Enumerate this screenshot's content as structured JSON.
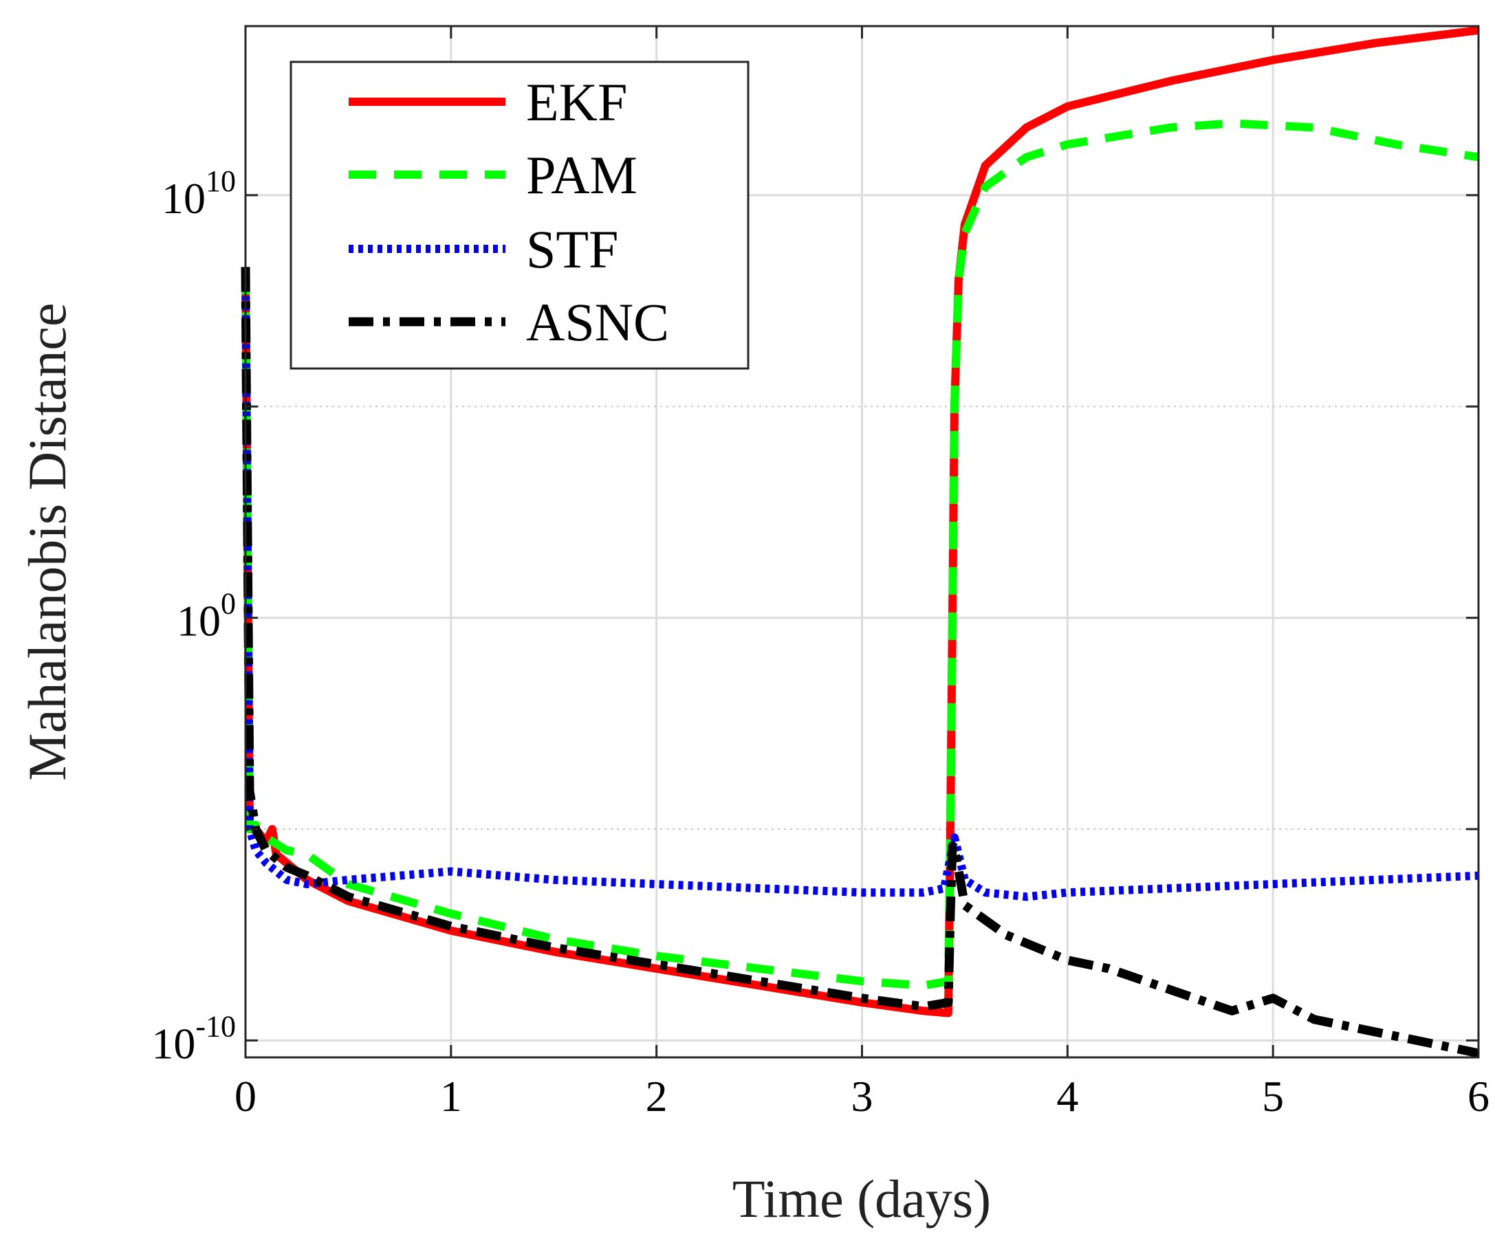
{
  "chart_data": {
    "type": "line",
    "title": "",
    "xlabel": "Time (days)",
    "ylabel": "Mahalanobis Distance",
    "xlim": [
      0,
      6
    ],
    "ylim_log10": [
      -10.4,
      14
    ],
    "y_scale": "log",
    "grid": true,
    "legend_position": "top-left",
    "x_ticks": [
      0,
      1,
      2,
      3,
      4,
      5,
      6
    ],
    "x_tick_labels": [
      "0",
      "1",
      "2",
      "3",
      "4",
      "5",
      "6"
    ],
    "y_major_ticks_log10": [
      -10,
      0,
      10
    ],
    "y_tick_labels": [
      {
        "base": "10",
        "exp": "-10"
      },
      {
        "base": "10",
        "exp": "0"
      },
      {
        "base": "10",
        "exp": "10"
      }
    ],
    "y_minor_grid_log10": [
      -5,
      5
    ],
    "series": [
      {
        "name": "EKF",
        "color": "#ff0000",
        "style": "solid",
        "x": [
          0,
          0.005,
          0.02,
          0.05,
          0.1,
          0.13,
          0.15,
          0.2,
          0.3,
          0.5,
          1.0,
          1.5,
          2.0,
          2.5,
          3.0,
          3.3,
          3.42,
          3.43,
          3.44,
          3.45,
          3.47,
          3.5,
          3.6,
          3.8,
          4.0,
          4.5,
          5.0,
          5.5,
          6.0
        ],
        "log10_y": [
          8.3,
          5.0,
          -5.0,
          -5.0,
          -5.3,
          -5.0,
          -5.6,
          -5.8,
          -6.2,
          -6.7,
          -7.4,
          -7.9,
          -8.3,
          -8.7,
          -9.1,
          -9.3,
          -9.35,
          -5.0,
          0.0,
          5.0,
          8.0,
          9.3,
          10.7,
          11.6,
          12.1,
          12.7,
          13.2,
          13.6,
          13.9
        ]
      },
      {
        "name": "PAM",
        "color": "#00ff00",
        "style": "dashed",
        "x": [
          0,
          0.005,
          0.02,
          0.05,
          0.1,
          0.2,
          0.3,
          0.5,
          1.0,
          1.5,
          2.0,
          2.5,
          3.0,
          3.3,
          3.42,
          3.43,
          3.44,
          3.45,
          3.47,
          3.5,
          3.6,
          3.8,
          4.0,
          4.5,
          4.8,
          5.2,
          5.6,
          6.0
        ],
        "log10_y": [
          8.3,
          5.0,
          -5.0,
          -4.9,
          -5.2,
          -5.5,
          -5.6,
          -6.3,
          -7.0,
          -7.6,
          -8.0,
          -8.3,
          -8.6,
          -8.7,
          -8.6,
          -5.0,
          0.0,
          5.0,
          8.0,
          9.1,
          10.2,
          10.9,
          11.2,
          11.6,
          11.7,
          11.6,
          11.2,
          10.9
        ]
      },
      {
        "name": "STF",
        "color": "#0000ff",
        "style": "dotted",
        "x": [
          0,
          0.005,
          0.02,
          0.05,
          0.1,
          0.2,
          0.3,
          0.5,
          1.0,
          1.5,
          2.0,
          2.5,
          3.0,
          3.3,
          3.4,
          3.45,
          3.5,
          3.6,
          3.8,
          4.0,
          4.5,
          5.0,
          5.5,
          6.0
        ],
        "log10_y": [
          8.3,
          5.0,
          -5.0,
          -5.5,
          -5.8,
          -6.2,
          -6.3,
          -6.2,
          -6.0,
          -6.2,
          -6.3,
          -6.4,
          -6.5,
          -6.5,
          -6.4,
          -5.2,
          -6.2,
          -6.5,
          -6.6,
          -6.5,
          -6.4,
          -6.3,
          -6.2,
          -6.1
        ]
      },
      {
        "name": "ASNC",
        "color": "#000000",
        "style": "dashdot",
        "x": [
          0,
          0.005,
          0.02,
          0.05,
          0.1,
          0.2,
          0.3,
          0.5,
          1.0,
          1.5,
          2.0,
          2.5,
          3.0,
          3.3,
          3.42,
          3.43,
          3.44,
          3.46,
          3.5,
          3.7,
          4.0,
          4.2,
          4.5,
          4.8,
          5.0,
          5.2,
          5.5,
          5.8,
          6.0
        ],
        "log10_y": [
          8.3,
          5.0,
          -4.1,
          -5.0,
          -5.5,
          -5.9,
          -6.1,
          -6.6,
          -7.3,
          -7.8,
          -8.2,
          -8.6,
          -9.0,
          -9.2,
          -9.1,
          -7.0,
          -5.4,
          -5.7,
          -6.8,
          -7.5,
          -8.1,
          -8.3,
          -8.8,
          -9.3,
          -9.0,
          -9.5,
          -9.8,
          -10.1,
          -10.3
        ]
      }
    ]
  }
}
